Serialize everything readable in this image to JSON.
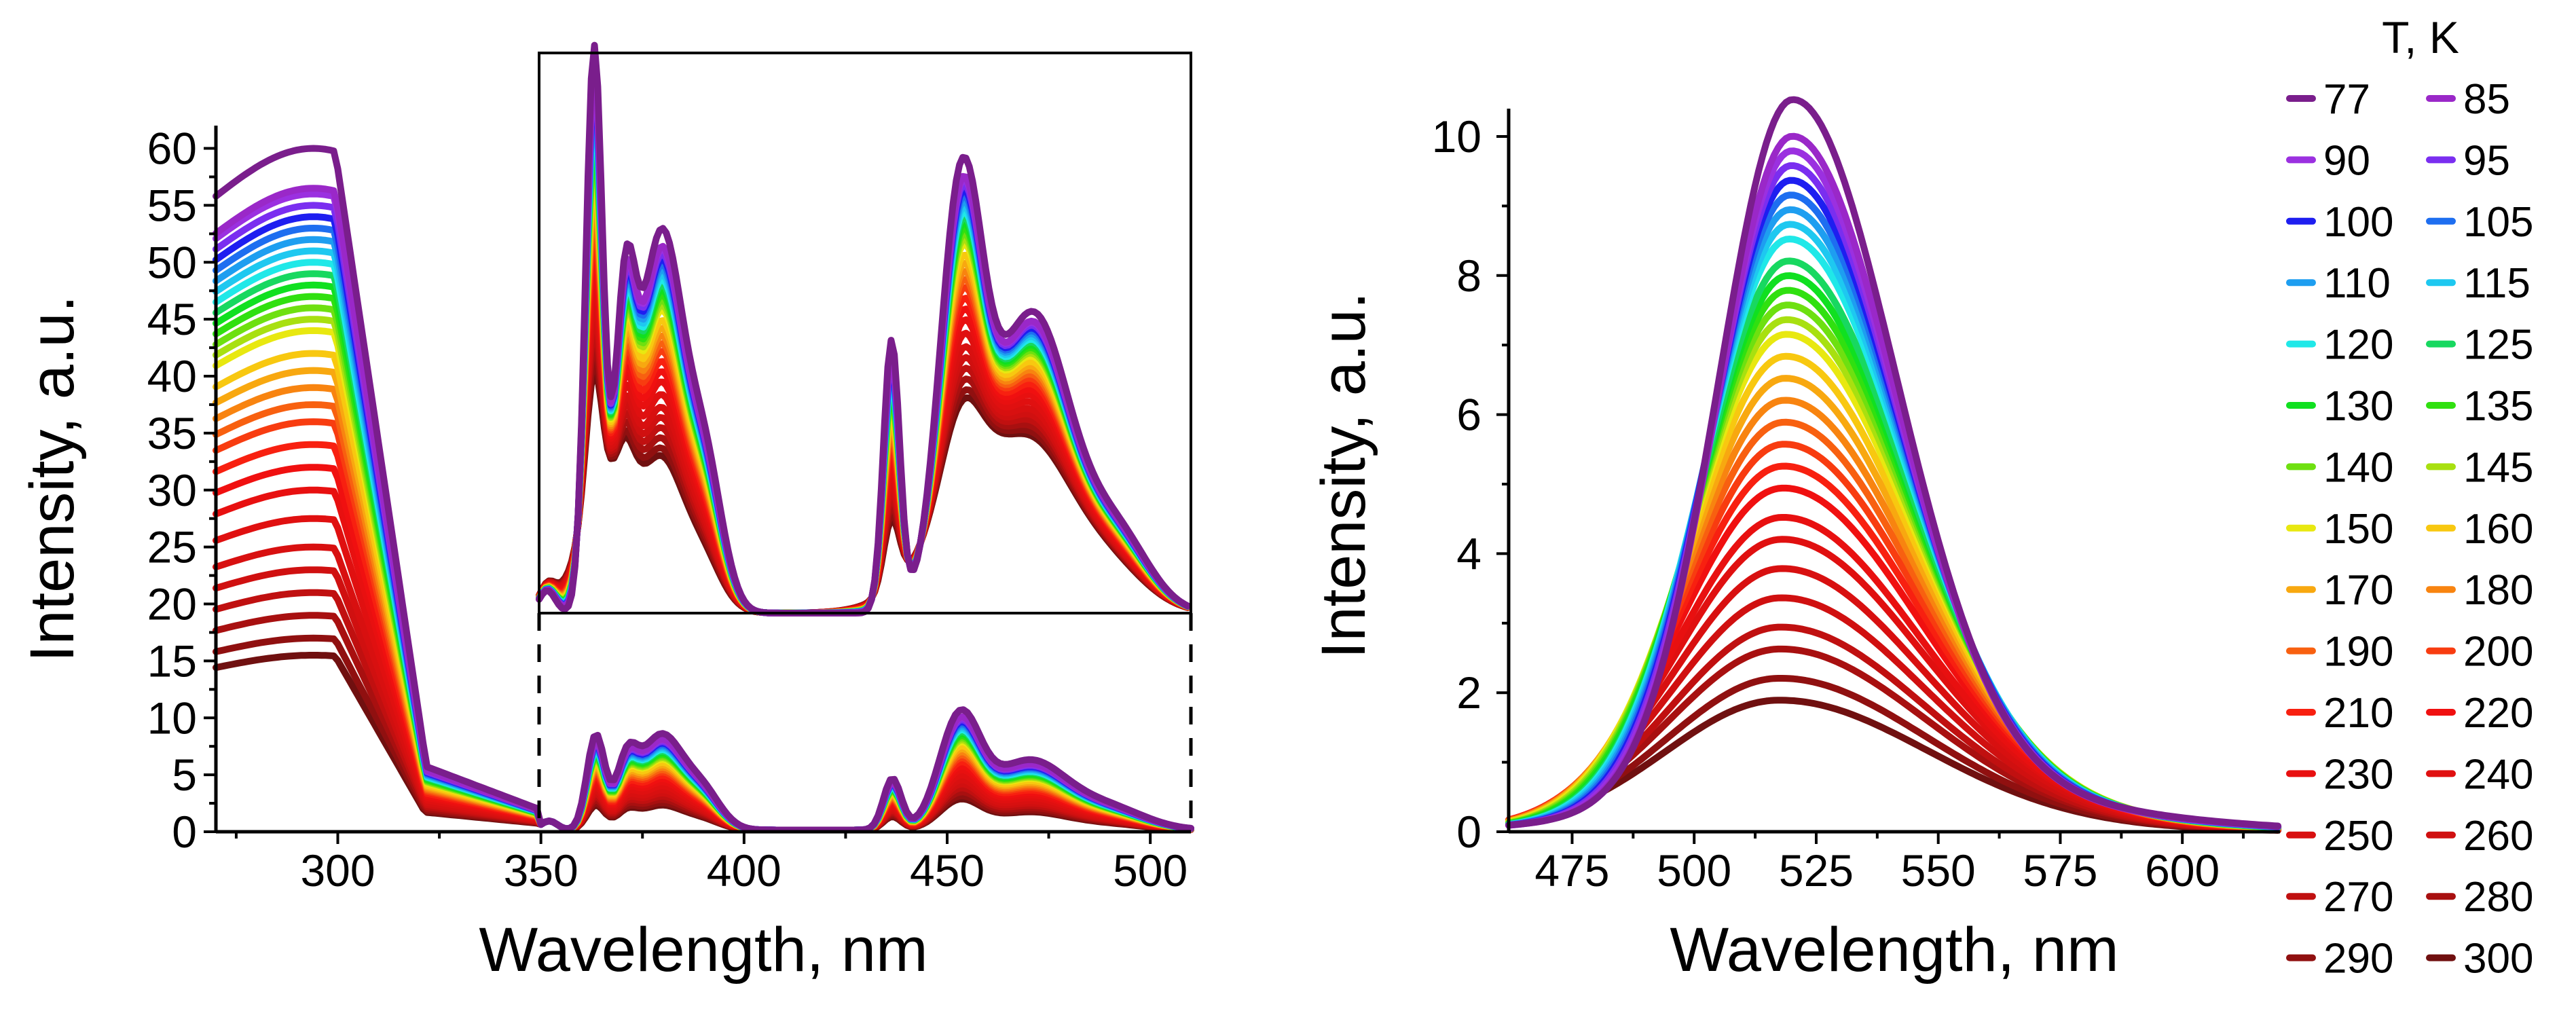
{
  "chart_data": [
    {
      "type": "line",
      "panel": "left-excitation",
      "xlabel": "Wavelength, nm",
      "ylabel": "Intensity, a.u.",
      "xlim": [
        270,
        510
      ],
      "ylim": [
        0,
        62
      ],
      "xticks": [
        "300",
        "350",
        "400",
        "450",
        "500"
      ],
      "yticks": [
        "0",
        "5",
        "10",
        "15",
        "20",
        "25",
        "30",
        "35",
        "40",
        "45",
        "50",
        "55",
        "60"
      ],
      "grid": false,
      "inset": {
        "description_source": "magnified view of 350-510 nm region",
        "xlim": [
          350,
          510
        ],
        "ylim": [
          0,
          62
        ]
      }
    },
    {
      "type": "line",
      "panel": "right-emission",
      "xlabel": "Wavelength, nm",
      "ylabel": "Intensity, a.u.",
      "xlim": [
        462,
        620
      ],
      "ylim": [
        0,
        10.4
      ],
      "xticks": [
        "475",
        "500",
        "525",
        "550",
        "575",
        "600"
      ],
      "yticks": [
        "0",
        "2",
        "4",
        "6",
        "8",
        "10"
      ],
      "grid": false
    }
  ],
  "legend": {
    "title": "T, K",
    "placement": "right",
    "entries": [
      {
        "label": "77",
        "color": "#7a1e8c",
        "peak_ex": 60.0,
        "peak_em": 10.0
      },
      {
        "label": "85",
        "color": "#9a28c8",
        "peak_ex": 56.5,
        "peak_em": 9.5
      },
      {
        "label": "90",
        "color": "#9b30e0",
        "peak_ex": 56.0,
        "peak_em": 9.3
      },
      {
        "label": "95",
        "color": "#7a2ef0",
        "peak_ex": 55.0,
        "peak_em": 9.1
      },
      {
        "label": "100",
        "color": "#1e1ef0",
        "peak_ex": 54.0,
        "peak_em": 8.9
      },
      {
        "label": "105",
        "color": "#1e6ef0",
        "peak_ex": 53.0,
        "peak_em": 8.7
      },
      {
        "label": "110",
        "color": "#1e9ef0",
        "peak_ex": 52.0,
        "peak_em": 8.5
      },
      {
        "label": "115",
        "color": "#1ec8f0",
        "peak_ex": 51.0,
        "peak_em": 8.3
      },
      {
        "label": "120",
        "color": "#20e8e8",
        "peak_ex": 50.0,
        "peak_em": 8.1
      },
      {
        "label": "125",
        "color": "#18d860",
        "peak_ex": 49.0,
        "peak_em": 7.8
      },
      {
        "label": "130",
        "color": "#10e020",
        "peak_ex": 48.0,
        "peak_em": 7.6
      },
      {
        "label": "135",
        "color": "#30e010",
        "peak_ex": 47.0,
        "peak_em": 7.4
      },
      {
        "label": "140",
        "color": "#6ee010",
        "peak_ex": 46.0,
        "peak_em": 7.2
      },
      {
        "label": "145",
        "color": "#a8e010",
        "peak_ex": 45.0,
        "peak_em": 7.0
      },
      {
        "label": "150",
        "color": "#e8e810",
        "peak_ex": 44.0,
        "peak_em": 6.8
      },
      {
        "label": "160",
        "color": "#f8c810",
        "peak_ex": 42.0,
        "peak_em": 6.5
      },
      {
        "label": "170",
        "color": "#f8a810",
        "peak_ex": 40.5,
        "peak_em": 6.2
      },
      {
        "label": "180",
        "color": "#f88410",
        "peak_ex": 39.0,
        "peak_em": 5.9
      },
      {
        "label": "190",
        "color": "#f86010",
        "peak_ex": 37.5,
        "peak_em": 5.6
      },
      {
        "label": "200",
        "color": "#f83c10",
        "peak_ex": 36.0,
        "peak_em": 5.3
      },
      {
        "label": "210",
        "color": "#f82010",
        "peak_ex": 34.0,
        "peak_em": 5.0
      },
      {
        "label": "220",
        "color": "#f01010",
        "peak_ex": 32.0,
        "peak_em": 4.7
      },
      {
        "label": "230",
        "color": "#e81010",
        "peak_ex": 30.0,
        "peak_em": 4.3
      },
      {
        "label": "240",
        "color": "#e01010",
        "peak_ex": 27.5,
        "peak_em": 4.0
      },
      {
        "label": "250",
        "color": "#d81010",
        "peak_ex": 25.0,
        "peak_em": 3.6
      },
      {
        "label": "260",
        "color": "#d01010",
        "peak_ex": 23.0,
        "peak_em": 3.2
      },
      {
        "label": "270",
        "color": "#c01010",
        "peak_ex": 21.0,
        "peak_em": 2.8
      },
      {
        "label": "280",
        "color": "#a81010",
        "peak_ex": 19.0,
        "peak_em": 2.5
      },
      {
        "label": "290",
        "color": "#901010",
        "peak_ex": 17.0,
        "peak_em": 2.1
      },
      {
        "label": "300",
        "color": "#701010",
        "peak_ex": 15.5,
        "peak_em": 1.8
      }
    ]
  }
}
